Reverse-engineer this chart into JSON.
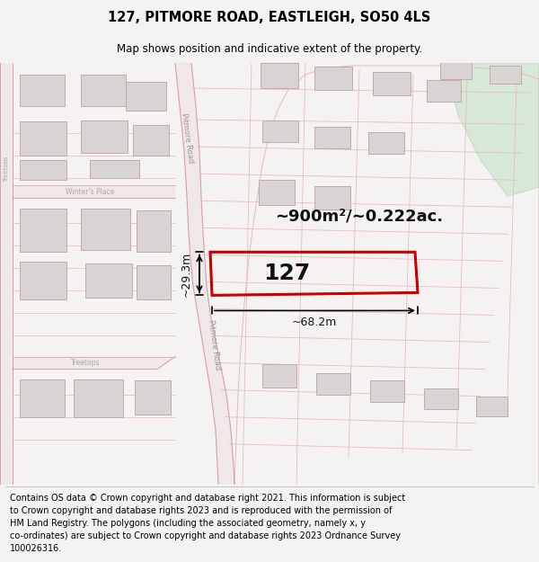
{
  "title": "127, PITMORE ROAD, EASTLEIGH, SO50 4LS",
  "subtitle": "Map shows position and indicative extent of the property.",
  "footer": "Contains OS data © Crown copyright and database right 2021. This information is subject\nto Crown copyright and database rights 2023 and is reproduced with the permission of\nHM Land Registry. The polygons (including the associated geometry, namely x, y\nco-ordinates) are subject to Crown copyright and database rights 2023 Ordnance Survey\n100026316.",
  "area_label": "~900m²/~0.222ac.",
  "width_label": "~68.2m",
  "height_label": "~29.3m",
  "number_label": "127",
  "fig_bg": "#f5f2f2",
  "map_bg": "#f8f5f5",
  "road_fill": "#f0e8e8",
  "road_edge": "#d4a0a0",
  "plot_edge": "#e8b8b8",
  "highlight_color": "#cc0000",
  "building_fill": "#d8d4d4",
  "building_edge": "#c8a8a8",
  "green_fill": "#d8e8d8",
  "green_edge": "#b8d0b8",
  "title_fontsize": 10.5,
  "subtitle_fontsize": 8.5,
  "footer_fontsize": 7.0,
  "road_label_fontsize": 6.0,
  "area_fontsize": 13,
  "num_fontsize": 18,
  "meas_fontsize": 9
}
